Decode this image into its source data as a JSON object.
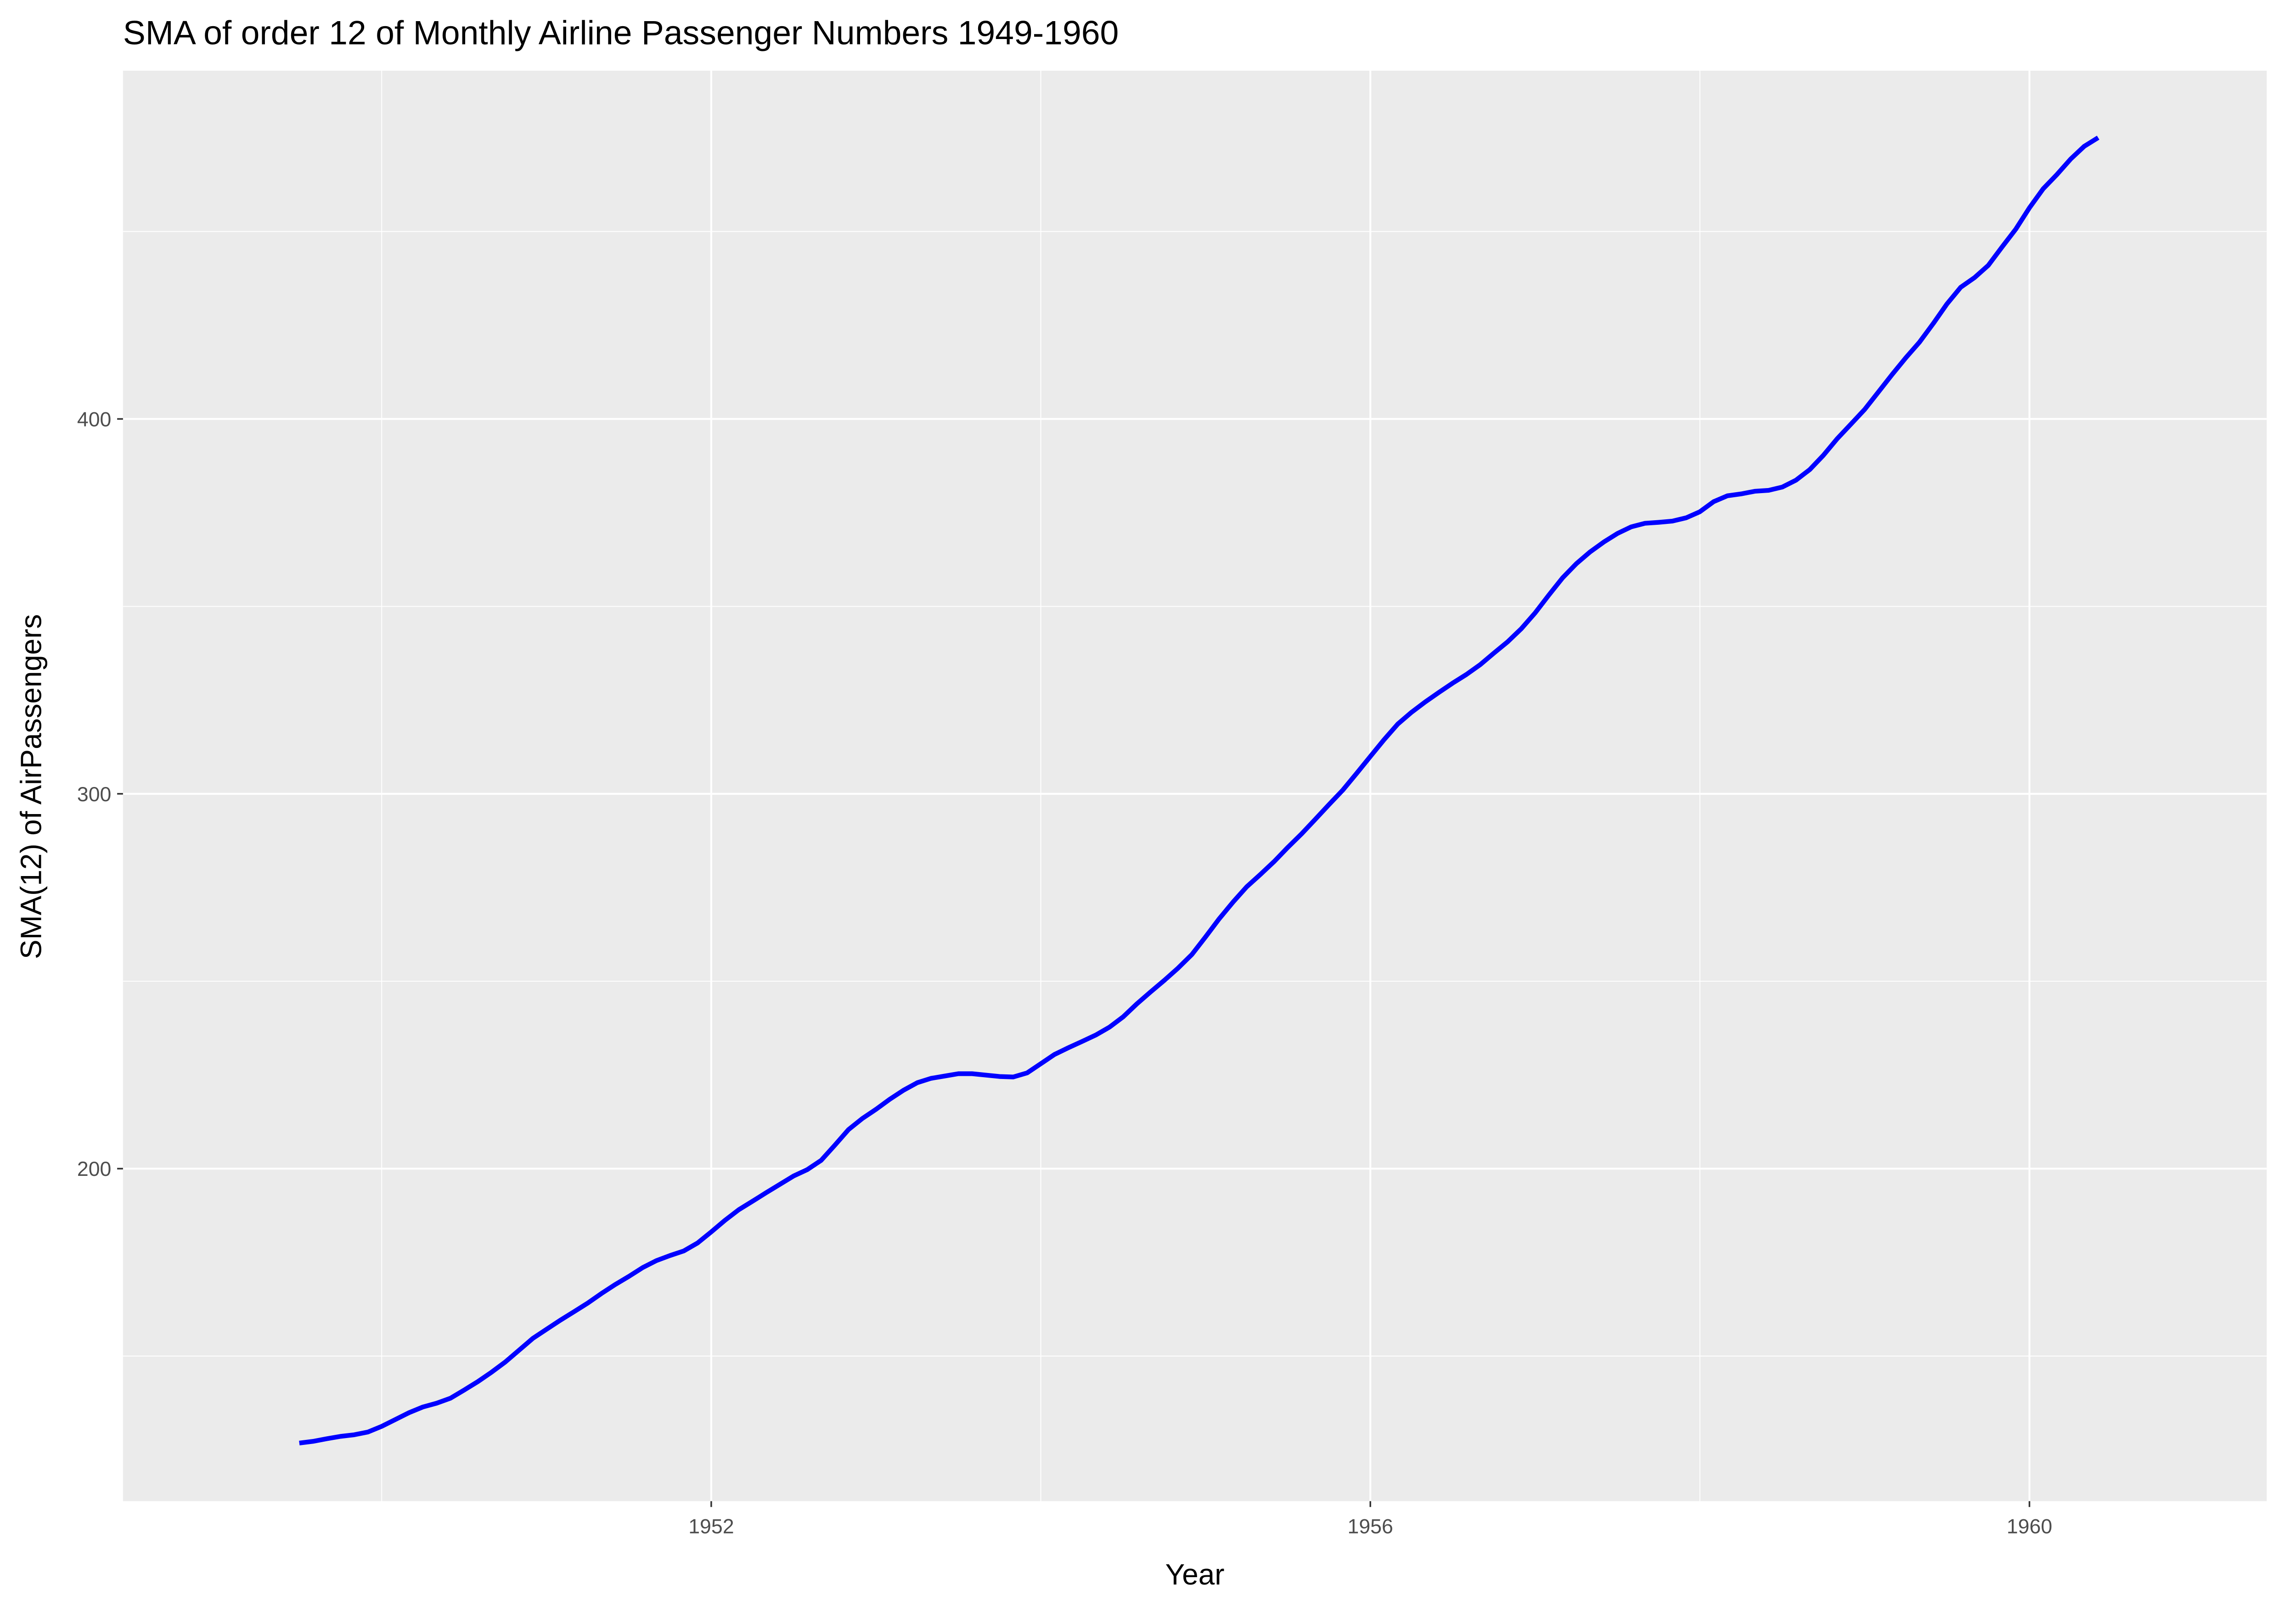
{
  "chart_data": {
    "type": "line",
    "title": "SMA of order 12 of Monthly Airline Passenger Numbers 1949-1960",
    "xlabel": "Year",
    "ylabel": "SMA(12) of AirPassengers",
    "xlim": [
      1948.43,
      1961.44
    ],
    "ylim": [
      111.3,
      492.9
    ],
    "xticks": [
      1952,
      1956,
      1960
    ],
    "yticks": [
      200,
      300,
      400
    ],
    "xminor": [
      1950,
      1954,
      1958
    ],
    "yminor": [
      150,
      250,
      350,
      450
    ],
    "grid": true,
    "x": [
      1949.5,
      1949.583,
      1949.667,
      1949.75,
      1949.833,
      1949.917,
      1950,
      1950.083,
      1950.167,
      1950.25,
      1950.333,
      1950.417,
      1950.5,
      1950.583,
      1950.667,
      1950.75,
      1950.833,
      1950.917,
      1951,
      1951.083,
      1951.167,
      1951.25,
      1951.333,
      1951.417,
      1951.5,
      1951.583,
      1951.667,
      1951.75,
      1951.833,
      1951.917,
      1952,
      1952.083,
      1952.167,
      1952.25,
      1952.333,
      1952.417,
      1952.5,
      1952.583,
      1952.667,
      1952.75,
      1952.833,
      1952.917,
      1953,
      1953.083,
      1953.167,
      1953.25,
      1953.333,
      1953.417,
      1953.5,
      1953.583,
      1953.667,
      1953.75,
      1953.833,
      1953.917,
      1954,
      1954.083,
      1954.167,
      1954.25,
      1954.333,
      1954.417,
      1954.5,
      1954.583,
      1954.667,
      1954.75,
      1954.833,
      1954.917,
      1955,
      1955.083,
      1955.167,
      1955.25,
      1955.333,
      1955.417,
      1955.5,
      1955.583,
      1955.667,
      1955.75,
      1955.833,
      1955.917,
      1956,
      1956.083,
      1956.167,
      1956.25,
      1956.333,
      1956.417,
      1956.5,
      1956.583,
      1956.667,
      1956.75,
      1956.833,
      1956.917,
      1957,
      1957.083,
      1957.167,
      1957.25,
      1957.333,
      1957.417,
      1957.5,
      1957.583,
      1957.667,
      1957.75,
      1957.833,
      1957.917,
      1958,
      1958.083,
      1958.167,
      1958.25,
      1958.333,
      1958.417,
      1958.5,
      1958.583,
      1958.667,
      1958.75,
      1958.833,
      1958.917,
      1959,
      1959.083,
      1959.167,
      1959.25,
      1959.333,
      1959.417,
      1959.5,
      1959.583,
      1959.667,
      1959.75,
      1959.833,
      1959.917,
      1960,
      1960.083,
      1960.167,
      1960.25,
      1960.333,
      1960.417
    ],
    "series": [
      {
        "color": "#0000ff",
        "values": [
          126.79,
          127.25,
          127.96,
          128.58,
          129.0,
          129.75,
          131.25,
          133.08,
          134.92,
          136.42,
          137.42,
          138.75,
          140.92,
          143.17,
          145.71,
          148.42,
          151.54,
          154.71,
          157.13,
          159.54,
          161.83,
          164.13,
          166.67,
          169.08,
          171.25,
          173.58,
          175.46,
          176.83,
          178.04,
          180.17,
          183.13,
          186.21,
          189.04,
          191.29,
          193.58,
          195.83,
          198.04,
          199.75,
          202.21,
          206.25,
          210.42,
          213.38,
          215.83,
          218.5,
          220.92,
          222.92,
          224.08,
          224.71,
          225.33,
          225.33,
          224.96,
          224.58,
          224.46,
          225.54,
          228.0,
          230.46,
          232.25,
          233.92,
          235.63,
          237.75,
          240.5,
          243.96,
          247.17,
          250.25,
          253.5,
          257.13,
          261.83,
          266.67,
          271.13,
          275.21,
          278.5,
          281.96,
          285.75,
          289.33,
          293.25,
          297.17,
          301.0,
          305.46,
          309.96,
          314.42,
          318.63,
          321.75,
          324.5,
          327.08,
          329.54,
          331.83,
          334.46,
          337.54,
          340.54,
          344.08,
          348.25,
          353.0,
          357.63,
          361.38,
          364.5,
          367.17,
          369.46,
          371.21,
          372.17,
          372.42,
          372.75,
          373.63,
          375.25,
          377.92,
          379.5,
          380.0,
          380.71,
          380.96,
          381.83,
          383.67,
          386.5,
          390.33,
          394.71,
          398.63,
          402.54,
          407.17,
          411.88,
          416.33,
          420.5,
          425.5,
          430.71,
          435.13,
          437.71,
          440.96,
          445.83,
          450.63,
          456.33,
          461.38,
          465.21,
          469.33,
          472.75,
          475.04
        ]
      }
    ]
  }
}
